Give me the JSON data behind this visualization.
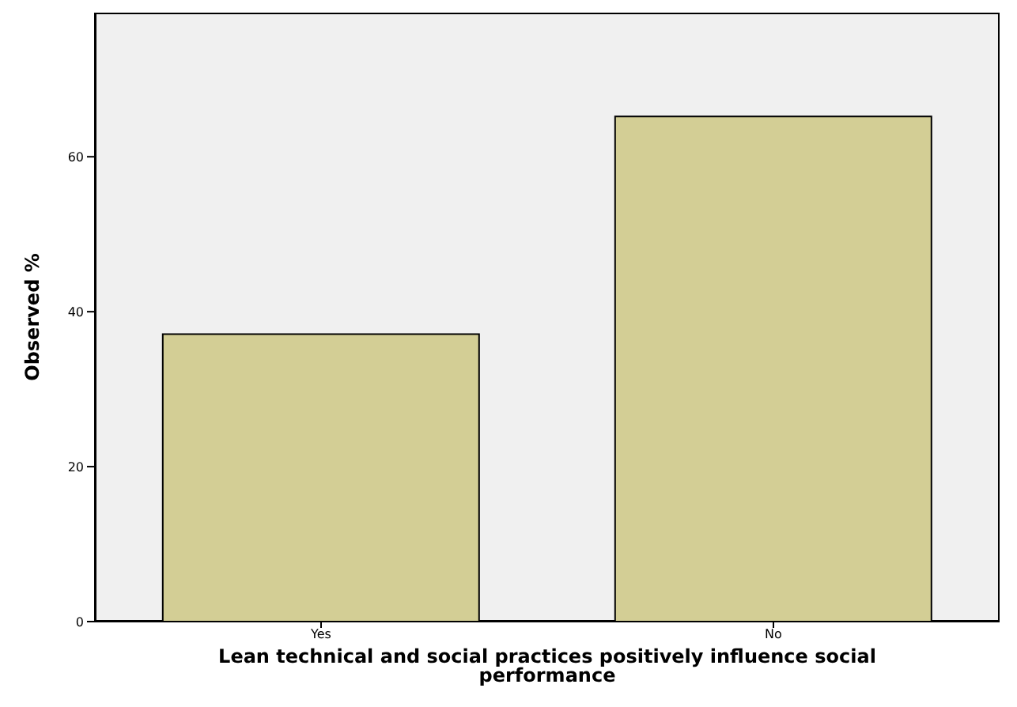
{
  "chart_data": {
    "type": "bar",
    "xlabel": "Lean technical and social practices positively influence social performance",
    "ylabel": "Observed %",
    "categories": [
      "Yes",
      "No"
    ],
    "values": [
      37.1,
      65.2
    ],
    "color": "#d3ce95",
    "ylim": [
      0,
      78.6
    ],
    "yticks": [
      0,
      20,
      40,
      60
    ],
    "grid": false
  }
}
